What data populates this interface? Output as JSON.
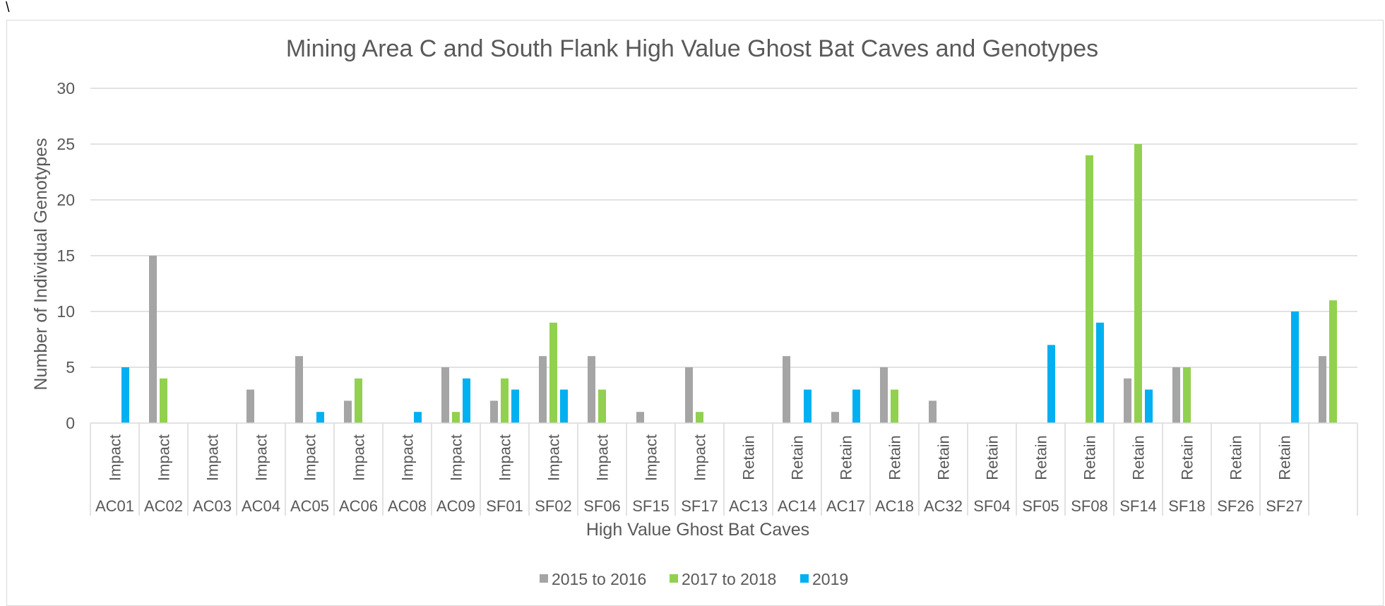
{
  "stray_mark": "\\",
  "chart_data": {
    "type": "bar",
    "title": "Mining Area C and South Flank High Value Ghost Bat Caves and Genotypes",
    "xlabel": "High Value Ghost Bat Caves",
    "ylabel": "Number of Individual Genotypes",
    "ylim": [
      0,
      30
    ],
    "yticks": [
      0,
      5,
      10,
      15,
      20,
      25,
      30
    ],
    "grid": true,
    "legend_position": "bottom",
    "categories": [
      {
        "group": "Impact",
        "cave": "AC01"
      },
      {
        "group": "Impact",
        "cave": "AC02"
      },
      {
        "group": "Impact",
        "cave": "AC03"
      },
      {
        "group": "Impact",
        "cave": "AC04"
      },
      {
        "group": "Impact",
        "cave": "AC05"
      },
      {
        "group": "Impact",
        "cave": "AC06"
      },
      {
        "group": "Impact",
        "cave": "AC08"
      },
      {
        "group": "Impact",
        "cave": "AC09"
      },
      {
        "group": "Impact",
        "cave": "SF01"
      },
      {
        "group": "Impact",
        "cave": "SF02"
      },
      {
        "group": "Impact",
        "cave": "SF06"
      },
      {
        "group": "Impact",
        "cave": "SF15"
      },
      {
        "group": "Impact",
        "cave": "SF17"
      },
      {
        "group": "Retain",
        "cave": "AC13"
      },
      {
        "group": "Retain",
        "cave": "AC14"
      },
      {
        "group": "Retain",
        "cave": "AC17"
      },
      {
        "group": "Retain",
        "cave": "AC18"
      },
      {
        "group": "Retain",
        "cave": "AC32"
      },
      {
        "group": "Retain",
        "cave": "SF04"
      },
      {
        "group": "Retain",
        "cave": "SF05"
      },
      {
        "group": "Retain",
        "cave": "SF08"
      },
      {
        "group": "Retain",
        "cave": "SF14"
      },
      {
        "group": "Retain",
        "cave": "SF18"
      },
      {
        "group": "Retain",
        "cave": "SF26"
      },
      {
        "group": "Retain",
        "cave": "SF27"
      },
      {
        "group": "",
        "cave": ""
      }
    ],
    "series": [
      {
        "name": "2015 to 2016",
        "color": "#a5a5a5",
        "values": [
          0,
          15,
          0,
          3,
          6,
          2,
          0,
          5,
          2,
          6,
          6,
          1,
          5,
          0,
          6,
          1,
          5,
          2,
          0,
          0,
          0,
          4,
          5,
          0,
          0,
          6
        ]
      },
      {
        "name": "2017 to 2018",
        "color": "#92d050",
        "values": [
          0,
          4,
          0,
          0,
          0,
          4,
          0,
          1,
          4,
          9,
          3,
          0,
          1,
          0,
          0,
          0,
          3,
          0,
          0,
          0,
          24,
          25,
          5,
          0,
          0,
          11
        ]
      },
      {
        "name": "2019",
        "color": "#00b0f0",
        "values": [
          5,
          0,
          0,
          0,
          1,
          0,
          1,
          4,
          3,
          3,
          0,
          0,
          0,
          0,
          3,
          3,
          0,
          0,
          0,
          7,
          9,
          3,
          0,
          0,
          10,
          0
        ]
      }
    ]
  }
}
